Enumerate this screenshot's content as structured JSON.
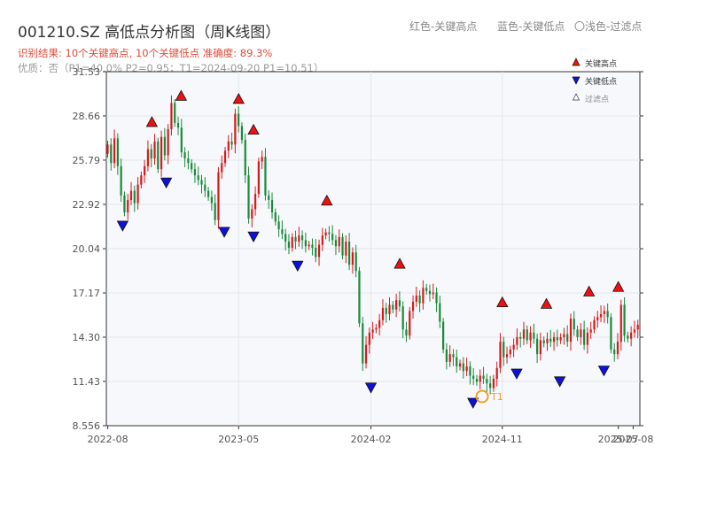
{
  "header": {
    "title": "001210.SZ 高低点分析图（周K线图）",
    "legend_red": "红色-关键高点",
    "legend_blue": "蓝色-关键低点",
    "legend_gray": "〇浅色-过滤点",
    "result": "识别结果: 10个关键高点, 10个关键低点   准确度: 89.3%",
    "quality": "优质：否（P1=40.0%  P2=0.95；T1=2024-09-20 P1=10.51）"
  },
  "colors": {
    "up": "#d7191c",
    "down": "#1a8a3a",
    "high": "#ee1111",
    "low": "#1010dd",
    "t1": "#f0a020"
  },
  "chart_data": {
    "type": "candlestick",
    "title": "001210.SZ 高低点分析图（周K线图）",
    "y_ticks": [
      "8.556",
      "11.43",
      "14.30",
      "17.17",
      "20.04",
      "22.92",
      "25.79",
      "28.66",
      "31.53"
    ],
    "y_range": [
      8.556,
      31.53
    ],
    "x_ticks": [
      "2022-08",
      "2023-05",
      "2024-02",
      "2024-11",
      "2025-07",
      "2025-08"
    ],
    "grid": true,
    "legend": {
      "position": "top-right",
      "entries": [
        "关键高点",
        "关键低点",
        "过滤点"
      ]
    },
    "closes": [
      26.8,
      25.6,
      27.2,
      25.4,
      23.5,
      22.4,
      23.2,
      23.8,
      23.0,
      24.2,
      24.8,
      25.4,
      26.5,
      25.9,
      27.0,
      25.2,
      27.3,
      26.1,
      27.8,
      29.5,
      28.2,
      27.9,
      26.3,
      25.9,
      25.6,
      25.2,
      24.8,
      24.5,
      24.2,
      23.8,
      23.4,
      23.0,
      21.9,
      25.0,
      25.6,
      26.4,
      27.0,
      26.8,
      28.8,
      28.0,
      27.1,
      24.8,
      22.0,
      22.6,
      23.6,
      25.7,
      26.0,
      23.5,
      23.2,
      22.4,
      21.8,
      21.3,
      21.0,
      20.5,
      20.1,
      20.8,
      20.5,
      20.9,
      20.6,
      20.2,
      20.3,
      20.1,
      19.5,
      20.3,
      20.9,
      21.1,
      21.0,
      20.6,
      20.2,
      20.8,
      19.6,
      20.5,
      19.0,
      19.8,
      18.6,
      15.2,
      12.6,
      13.8,
      14.6,
      14.8,
      14.9,
      15.4,
      16.2,
      15.8,
      16.4,
      16.1,
      16.7,
      16.3,
      14.8,
      14.4,
      16.0,
      16.6,
      17.0,
      16.5,
      17.5,
      17.3,
      17.1,
      17.2,
      16.5,
      15.3,
      13.5,
      12.7,
      13.2,
      13.0,
      12.4,
      12.6,
      12.1,
      12.4,
      11.8,
      11.6,
      11.4,
      11.8,
      11.6,
      11.3,
      11.0,
      11.6,
      12.3,
      14.0,
      13.0,
      13.2,
      13.5,
      13.8,
      14.3,
      14.2,
      14.8,
      14.1,
      14.6,
      14.2,
      13.2,
      14.1,
      13.9,
      14.2,
      14.0,
      14.3,
      14.1,
      14.3,
      14.5,
      14.0,
      15.5,
      14.8,
      14.3,
      14.8,
      13.8,
      14.6,
      14.8,
      15.4,
      15.6,
      15.8,
      16.0,
      15.6,
      13.5,
      13.2,
      14.0,
      16.4,
      14.4,
      14.2,
      14.6,
      14.8,
      15.1
    ]
  },
  "key_highs": [
    {
      "date": "2022-11",
      "price": 27.8
    },
    {
      "date": "2023-01",
      "price": 29.5
    },
    {
      "date": "2023-05",
      "price": 29.3
    },
    {
      "date": "2023-06",
      "price": 27.3
    },
    {
      "date": "2023-11",
      "price": 22.7
    },
    {
      "date": "2024-04",
      "price": 18.6
    },
    {
      "date": "2024-11",
      "price": 16.1
    },
    {
      "date": "2025-02",
      "price": 16.0
    },
    {
      "date": "2025-05",
      "price": 16.8
    },
    {
      "date": "2025-07",
      "price": 17.1
    }
  ],
  "key_lows": [
    {
      "date": "2022-09",
      "price": 22.0
    },
    {
      "date": "2022-12",
      "price": 24.8
    },
    {
      "date": "2023-04",
      "price": 21.6
    },
    {
      "date": "2023-06",
      "price": 21.3
    },
    {
      "date": "2023-09",
      "price": 19.4
    },
    {
      "date": "2024-02",
      "price": 11.5
    },
    {
      "date": "2024-09",
      "price": 10.51
    },
    {
      "date": "2024-12",
      "price": 12.4
    },
    {
      "date": "2025-03",
      "price": 11.9
    },
    {
      "date": "2025-06",
      "price": 12.6
    }
  ],
  "t1": {
    "label": "T1",
    "date": "2024-09-20",
    "price": 10.51
  }
}
